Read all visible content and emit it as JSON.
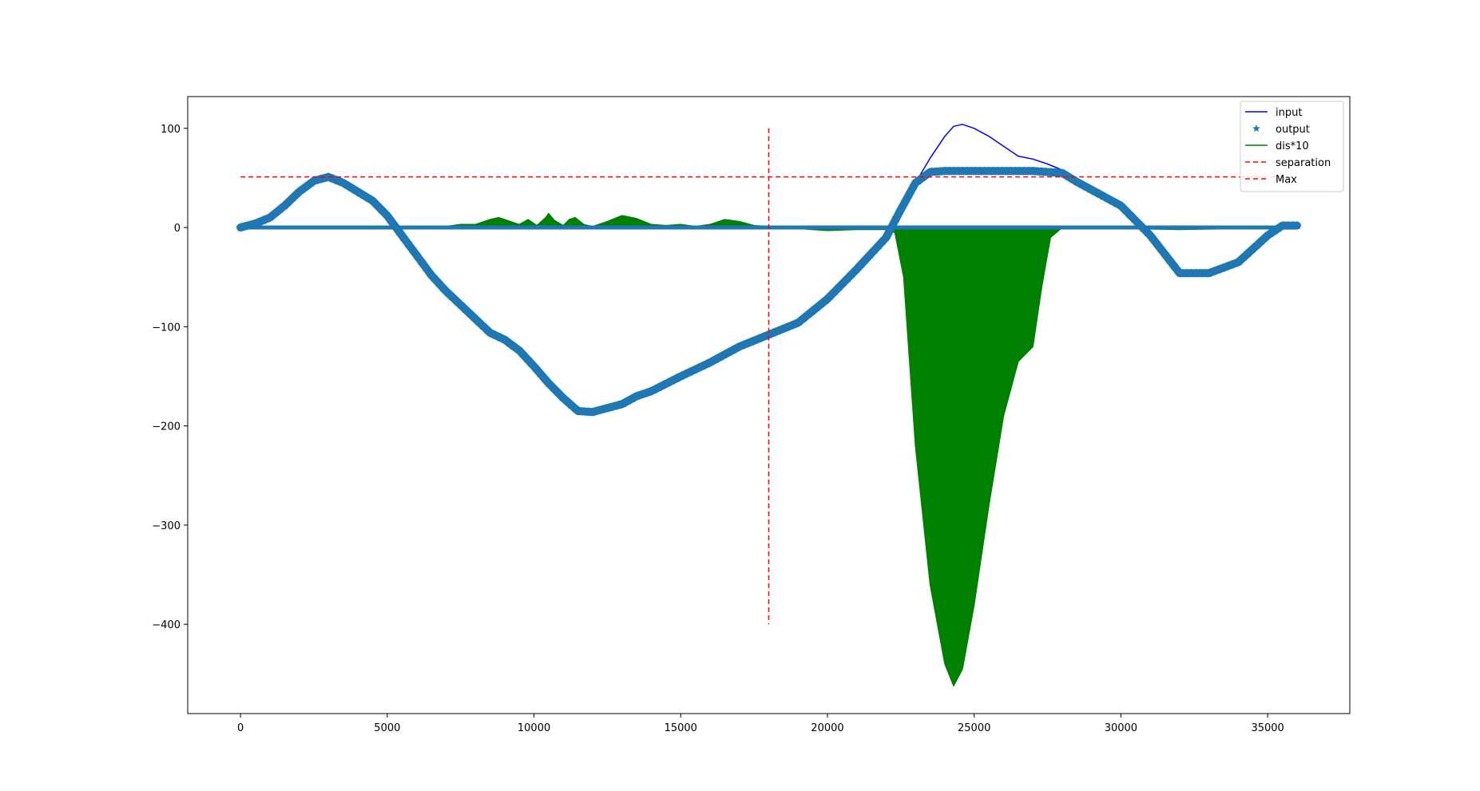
{
  "chart_data": {
    "type": "line",
    "title": "",
    "xlabel": "",
    "ylabel": "",
    "xlim": [
      -1800,
      37800
    ],
    "ylim": [
      -490,
      132
    ],
    "xticks": [
      0,
      5000,
      10000,
      15000,
      20000,
      25000,
      30000,
      35000
    ],
    "xtick_labels": [
      "0",
      "5000",
      "10000",
      "15000",
      "20000",
      "25000",
      "30000",
      "35000"
    ],
    "yticks": [
      100,
      0,
      -100,
      -200,
      -300,
      -400
    ],
    "ytick_labels": [
      "100",
      "0",
      "−100",
      "−200",
      "−300",
      "−400"
    ],
    "grid": false,
    "legend_position": "top-right",
    "series": [
      {
        "name": "input",
        "kind": "line",
        "color": "#0000ff",
        "x": [
          0,
          500,
          1000,
          1500,
          2000,
          2500,
          3000,
          3500,
          4000,
          4500,
          5000,
          5500,
          6000,
          6500,
          7000,
          7500,
          8000,
          8500,
          9000,
          9500,
          10000,
          10500,
          11000,
          11500,
          12000,
          12500,
          13000,
          13500,
          14000,
          15000,
          16000,
          17000,
          18000,
          19000,
          20000,
          21000,
          22000,
          22500,
          23000,
          23500,
          24000,
          24300,
          24600,
          25000,
          25500,
          26000,
          26500,
          27000,
          27500,
          28000,
          28500,
          29000,
          30000,
          31000,
          32000,
          33000,
          34000,
          35000,
          35500,
          36000
        ],
        "y": [
          0,
          4,
          10,
          22,
          36,
          47,
          51,
          45,
          36,
          27,
          12,
          -8,
          -28,
          -48,
          -64,
          -78,
          -92,
          -106,
          -113,
          -124,
          -140,
          -157,
          -172,
          -185,
          -186,
          -182,
          -178,
          -170,
          -165,
          -150,
          -136,
          -120,
          -108,
          -96,
          -72,
          -42,
          -10,
          18,
          45,
          70,
          92,
          102,
          104,
          100,
          92,
          82,
          72,
          69,
          64,
          58,
          46,
          38,
          22,
          -8,
          -46,
          -46,
          -35,
          -8,
          2,
          2
        ]
      },
      {
        "name": "output",
        "kind": "markers",
        "marker": "star",
        "color": "#1f77b4",
        "x": [
          0,
          500,
          1000,
          1500,
          2000,
          2500,
          3000,
          3500,
          4000,
          4500,
          5000,
          5500,
          6000,
          6500,
          7000,
          7500,
          8000,
          8500,
          9000,
          9500,
          10000,
          10500,
          11000,
          11500,
          12000,
          12500,
          13000,
          13500,
          14000,
          15000,
          16000,
          17000,
          18000,
          19000,
          20000,
          21000,
          22000,
          22500,
          23000,
          23500,
          24000,
          25000,
          26000,
          27000,
          28000,
          28500,
          29000,
          30000,
          31000,
          32000,
          33000,
          34000,
          35000,
          35500,
          36000
        ],
        "y": [
          0,
          4,
          10,
          22,
          36,
          47,
          51,
          45,
          36,
          27,
          12,
          -8,
          -28,
          -48,
          -64,
          -78,
          -92,
          -106,
          -113,
          -124,
          -140,
          -157,
          -172,
          -185,
          -186,
          -182,
          -178,
          -170,
          -165,
          -150,
          -136,
          -120,
          -108,
          -96,
          -72,
          -42,
          -10,
          18,
          45,
          56,
          57,
          57,
          57,
          57,
          55,
          46,
          38,
          22,
          -8,
          -46,
          -46,
          -35,
          -8,
          2,
          2
        ]
      },
      {
        "name": "output_zero_band",
        "kind": "markers",
        "marker": "star",
        "color": "#1f77b4",
        "x": [
          0,
          36000
        ],
        "y": [
          0,
          0
        ]
      },
      {
        "name": "dis*10",
        "kind": "fill",
        "color": "#008000",
        "x": [
          0,
          2000,
          4000,
          6000,
          7000,
          7500,
          8000,
          8500,
          8800,
          9200,
          9500,
          9800,
          10100,
          10400,
          10500,
          10700,
          11000,
          11200,
          11400,
          11700,
          12000,
          12500,
          13000,
          13500,
          14000,
          14500,
          15000,
          15500,
          16000,
          16500,
          17000,
          17500,
          18000,
          19000,
          20000,
          21000,
          22000,
          22300,
          22600,
          23000,
          23500,
          24000,
          24300,
          24600,
          25000,
          25500,
          26000,
          26500,
          27000,
          27300,
          27600,
          28000,
          28500,
          30000,
          32000,
          34000,
          36000
        ],
        "y": [
          0,
          1,
          0,
          1,
          1,
          3,
          3,
          8,
          10,
          6,
          3,
          8,
          2,
          10,
          14,
          7,
          2,
          8,
          10,
          3,
          1,
          6,
          12,
          9,
          3,
          2,
          3,
          1,
          3,
          8,
          6,
          2,
          1,
          -1,
          -3,
          -2,
          -2,
          -5,
          -50,
          -220,
          -360,
          -440,
          -462,
          -445,
          -380,
          -280,
          -190,
          -135,
          -120,
          -60,
          -10,
          0,
          0,
          -1,
          -2,
          -1,
          0
        ]
      },
      {
        "name": "separation",
        "kind": "dashed",
        "color": "#ff0000",
        "x": [
          18000,
          18000
        ],
        "y": [
          100,
          -400
        ]
      },
      {
        "name": "Max",
        "kind": "dashed",
        "color": "#ff0000",
        "x": [
          0,
          36000
        ],
        "y": [
          51,
          51
        ]
      }
    ],
    "legend": [
      {
        "label": "input",
        "kind": "line",
        "color": "#0000ff"
      },
      {
        "label": "output",
        "kind": "star",
        "color": "#1f77b4"
      },
      {
        "label": "dis*10",
        "kind": "line",
        "color": "#008000"
      },
      {
        "label": "separation",
        "kind": "dashed",
        "color": "#ff0000"
      },
      {
        "label": "Max",
        "kind": "dashed",
        "color": "#ff0000"
      }
    ]
  }
}
